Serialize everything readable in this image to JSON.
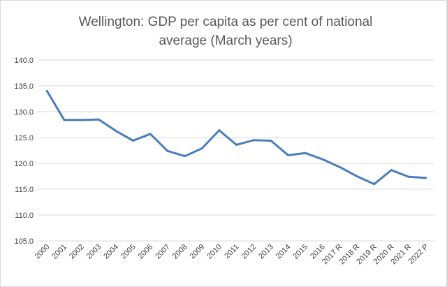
{
  "chart_data": {
    "type": "line",
    "title_lines": [
      "Wellington: GDP per capita as per cent of national",
      "average (March years)"
    ],
    "xlabel": "",
    "ylabel": "",
    "categories": [
      "2000",
      "2001",
      "2002",
      "2003",
      "2004",
      "2005",
      "2006",
      "2007",
      "2008",
      "2009",
      "2010",
      "2011",
      "2012",
      "2013",
      "2014",
      "2015",
      "2016",
      "2017 R",
      "2018 R",
      "2019 R",
      "2020 R",
      "2021 R",
      "2022 P"
    ],
    "series": [
      {
        "values": [
          134.0,
          128.4,
          128.4,
          128.5,
          126.3,
          124.4,
          125.7,
          122.4,
          121.4,
          122.9,
          126.4,
          123.6,
          124.5,
          124.4,
          121.6,
          122.0,
          120.8,
          119.3,
          117.5,
          116.0,
          118.7,
          117.4,
          117.2
        ],
        "color": "#4a7ebb"
      }
    ],
    "y_ticks": [
      "105.0",
      "110.0",
      "115.0",
      "120.0",
      "125.0",
      "130.0",
      "135.0",
      "140.0"
    ],
    "ylim": [
      105,
      140
    ],
    "grid": true,
    "gridline_color": "#d9d9d9",
    "legend": "none"
  }
}
